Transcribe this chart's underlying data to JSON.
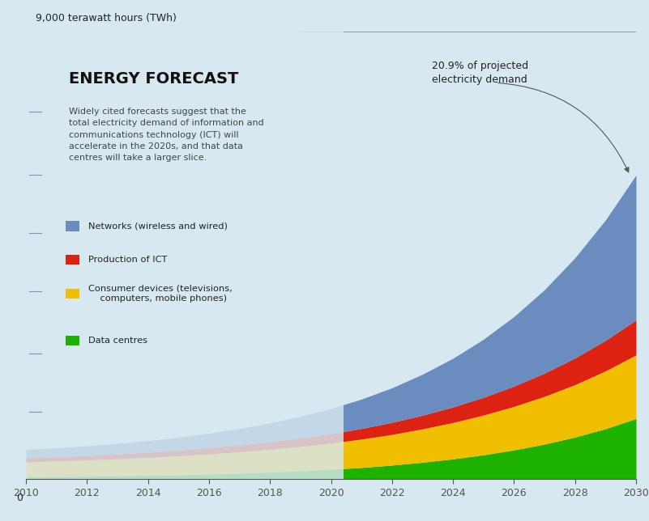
{
  "years": [
    2010,
    2011,
    2012,
    2013,
    2014,
    2015,
    2016,
    2017,
    2018,
    2019,
    2020,
    2021,
    2022,
    2023,
    2024,
    2025,
    2026,
    2027,
    2028,
    2029,
    2030
  ],
  "data_centres": [
    50,
    55,
    62,
    70,
    80,
    92,
    107,
    124,
    145,
    170,
    200,
    238,
    285,
    342,
    410,
    492,
    590,
    707,
    848,
    1017,
    1220
  ],
  "consumer_devices": [
    300,
    312,
    326,
    342,
    360,
    380,
    403,
    428,
    457,
    490,
    527,
    569,
    616,
    670,
    730,
    798,
    874,
    959,
    1054,
    1160,
    1278
  ],
  "production_ict": [
    80,
    85,
    91,
    98,
    106,
    115,
    126,
    138,
    153,
    170,
    190,
    214,
    242,
    275,
    313,
    357,
    408,
    467,
    535,
    613,
    703
  ],
  "networks": [
    170,
    180,
    194,
    211,
    232,
    258,
    290,
    329,
    377,
    435,
    505,
    590,
    695,
    823,
    978,
    1167,
    1397,
    1676,
    2013,
    2419,
    2909
  ],
  "colors": {
    "data_centres": "#1db100",
    "consumer_devices": "#f0c000",
    "production_ict": "#dd2211",
    "networks": "#6b8cbe"
  },
  "title": "ENERGY FORECAST",
  "subtitle": "Widely cited forecasts suggest that the\ntotal electricity demand of information and\ncommunications technology (ICT) will\naccelerate in the 2020s, and that data\ncentres will take a larger slice.",
  "annotation_label": "20.9% of projected\nelectricity demand",
  "top_label": "9,000 terawatt hours (TWh)",
  "ylim": [
    0,
    9000
  ],
  "xlim": [
    2010,
    2030
  ],
  "xticks": [
    2010,
    2012,
    2014,
    2016,
    2018,
    2020,
    2022,
    2024,
    2026,
    2028,
    2030
  ],
  "ytick_labels": [
    "",
    "",
    "",
    "",
    "",
    "",
    "",
    "",
    ""
  ],
  "legend_items": [
    {
      "label": "Networks (wireless and wired)",
      "color": "#6b8cbe"
    },
    {
      "label": "Production of ICT",
      "color": "#dd2211"
    },
    {
      "label": "Consumer devices (televisions,\n    computers, mobile phones)",
      "color": "#f0c000"
    },
    {
      "label": "Data centres",
      "color": "#1db100"
    }
  ],
  "background_color": "#d8e8f0",
  "left_panel_color": "#d8e8f0",
  "ytick_line_color": "#aabbcc",
  "spine_color": "#555555",
  "text_color": "#222222",
  "subtitle_color": "#444444"
}
